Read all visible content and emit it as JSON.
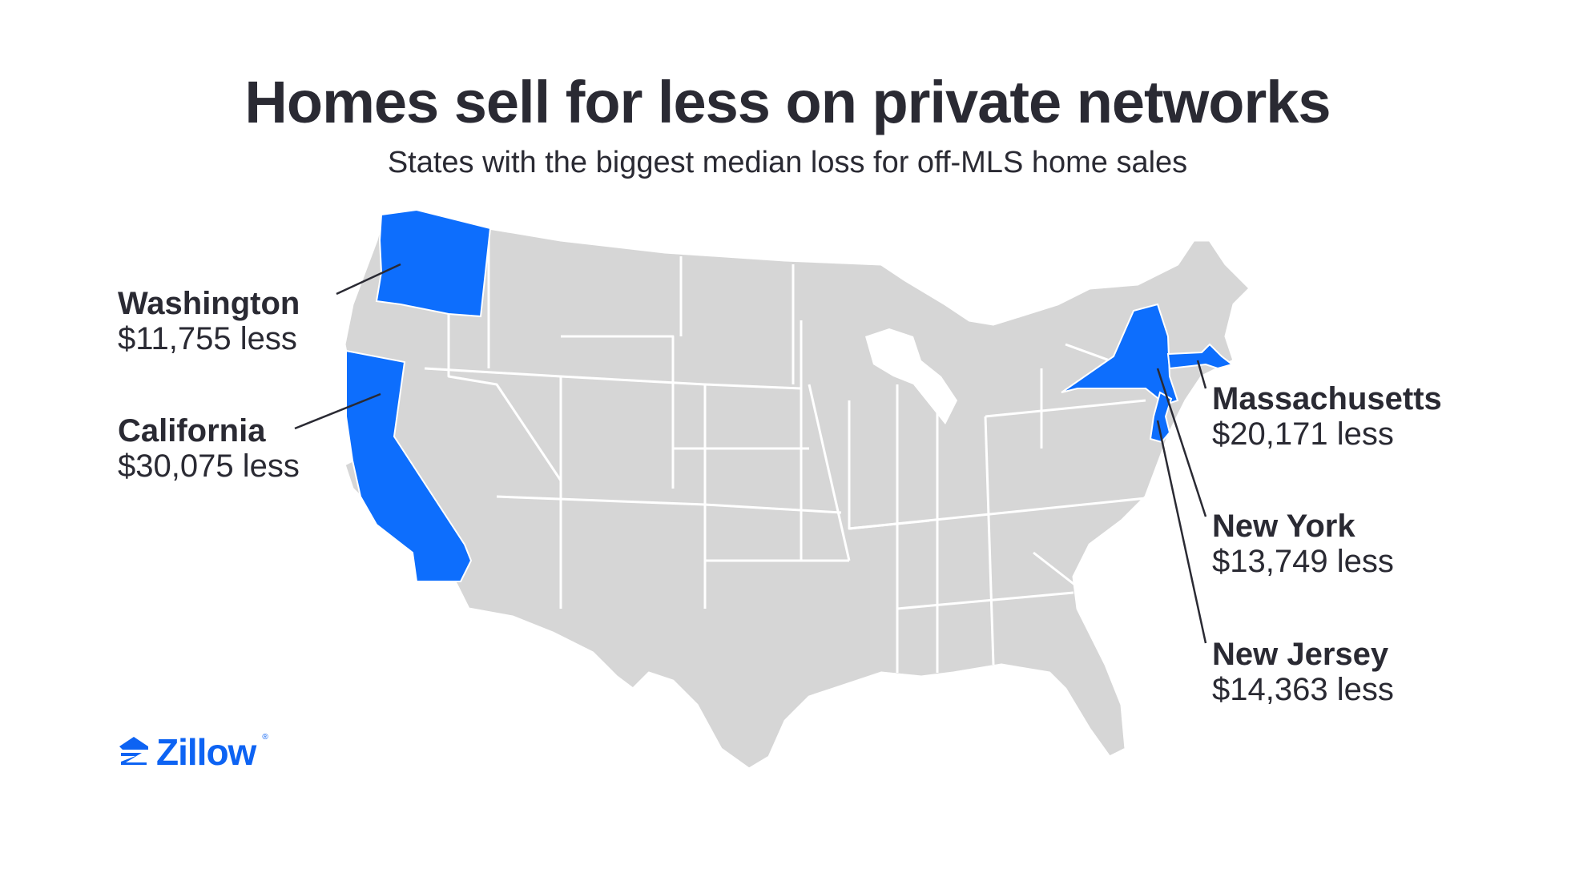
{
  "title": "Homes sell for less on private networks",
  "subtitle": "States with the biggest median loss for off-MLS home sales",
  "colors": {
    "highlight": "#0d6efd",
    "base_state": "#d6d6d6",
    "border": "#ffffff",
    "text": "#2a2a33",
    "brand": "#0d63f3"
  },
  "states": [
    {
      "name": "Washington",
      "value": "$11,755 less"
    },
    {
      "name": "California",
      "value": "$30,075 less"
    },
    {
      "name": "Massachusetts",
      "value": "$20,171 less"
    },
    {
      "name": "New York",
      "value": "$13,749 less"
    },
    {
      "name": "New Jersey",
      "value": "$14,363 less"
    }
  ],
  "logo": {
    "text": "Zillow",
    "icon": "zillow-house-icon"
  }
}
